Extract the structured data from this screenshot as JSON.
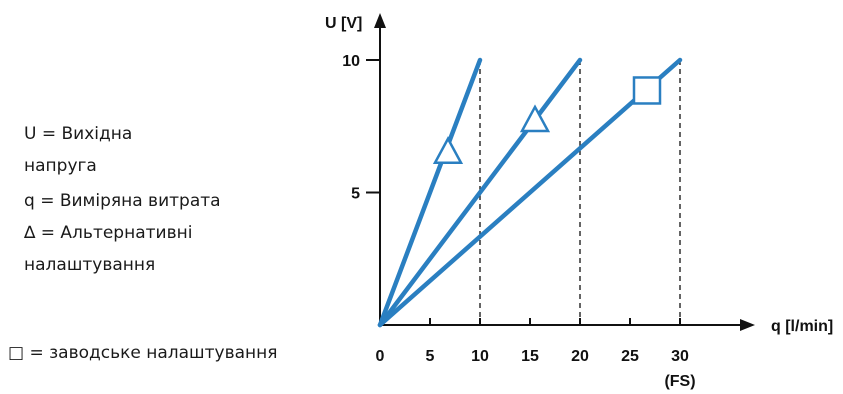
{
  "legend": {
    "lines": [
      "U = Вихідна",
      "напруга",
      "q = Виміряна витрата",
      "∆ = Альтернативні",
      "налаштування"
    ],
    "factory": "□ = заводське налаштування"
  },
  "chart_data": {
    "type": "line",
    "xlabel": "q [l/min]",
    "ylabel": "U [V]",
    "xlim": [
      0,
      30
    ],
    "ylim": [
      0,
      10
    ],
    "x_ticks": [
      0,
      5,
      10,
      15,
      20,
      25,
      30
    ],
    "x_tick_labels": [
      "0",
      "5",
      "10",
      "15",
      "20",
      "25",
      "30"
    ],
    "x_tick_sublabel": {
      "x": 30,
      "text": "(FS)"
    },
    "y_ticks": [
      5,
      10
    ],
    "y_tick_labels": [
      "5",
      "10"
    ],
    "series": [
      {
        "values": [
          [
            0,
            0
          ],
          [
            10,
            10
          ]
        ],
        "marker": "triangle",
        "marker_at": [
          6.8,
          6.5
        ]
      },
      {
        "values": [
          [
            0,
            0
          ],
          [
            20,
            10
          ]
        ],
        "marker": "triangle",
        "marker_at": [
          15.5,
          7.7
        ]
      },
      {
        "values": [
          [
            0,
            0
          ],
          [
            30,
            10
          ]
        ],
        "marker": "square",
        "marker_at": [
          26.7,
          8.85
        ]
      }
    ],
    "dashed_guides_at_x": [
      10,
      20,
      30
    ],
    "colors": {
      "line": "#2a7fc1",
      "axis": "#111111"
    }
  }
}
